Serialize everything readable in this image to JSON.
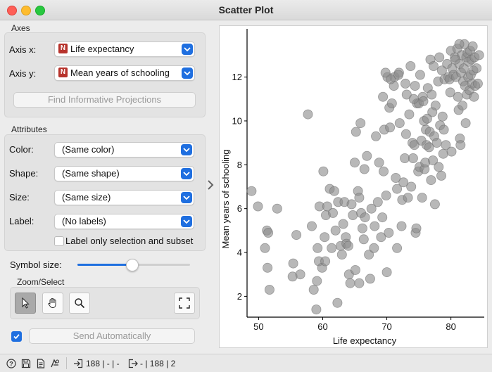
{
  "window": {
    "title": "Scatter Plot"
  },
  "axes": {
    "section": "Axes",
    "x_label": "Axis x:",
    "x_value": "Life expectancy",
    "y_label": "Axis y:",
    "y_value": "Mean years of schooling",
    "var_badge": "N",
    "find_button": "Find Informative Projections"
  },
  "attributes": {
    "section": "Attributes",
    "color_label": "Color:",
    "color_value": "(Same color)",
    "shape_label": "Shape:",
    "shape_value": "(Same shape)",
    "size_label": "Size:",
    "size_value": "(Same size)",
    "label_label": "Label:",
    "label_value": "(No labels)",
    "label_only_text": "Label only selection and subset",
    "label_only_checked": false
  },
  "symbol": {
    "label": "Symbol size:",
    "value_fraction": 0.48
  },
  "zoom": {
    "section": "Zoom/Select"
  },
  "send": {
    "checked": true,
    "label": "Send Automatically"
  },
  "status": {
    "in_text": "188 | - | -",
    "out_text": "- | 188 | 2"
  },
  "colors": {
    "accent": "#1f6fe0",
    "point": "#8c8c8c",
    "badge": "#b7332c"
  },
  "chart_data": {
    "type": "scatter",
    "xlabel": "Life expectancy",
    "ylabel": "Mean years of schooling",
    "xlim": [
      48.2,
      85.2
    ],
    "ylim": [
      1.05,
      14.2
    ],
    "xticks": [
      50,
      60,
      70,
      80
    ],
    "yticks": [
      2,
      4,
      6,
      8,
      10,
      12
    ],
    "grid": false,
    "points": [
      [
        48.9,
        6.8
      ],
      [
        49.9,
        6.1
      ],
      [
        51.0,
        4.2
      ],
      [
        51.3,
        5.0
      ],
      [
        51.5,
        4.9
      ],
      [
        51.7,
        2.3
      ],
      [
        51.4,
        3.3
      ],
      [
        52.9,
        6.0
      ],
      [
        55.4,
        3.5
      ],
      [
        55.3,
        2.9
      ],
      [
        55.9,
        4.8
      ],
      [
        56.5,
        3.0
      ],
      [
        57.7,
        10.3
      ],
      [
        58.3,
        5.2
      ],
      [
        58.6,
        2.3
      ],
      [
        59.0,
        1.4
      ],
      [
        59.1,
        2.7
      ],
      [
        59.2,
        4.2
      ],
      [
        59.4,
        3.6
      ],
      [
        59.5,
        6.1
      ],
      [
        59.9,
        3.3
      ],
      [
        60.1,
        7.7
      ],
      [
        60.3,
        4.7
      ],
      [
        60.4,
        3.6
      ],
      [
        60.5,
        5.7
      ],
      [
        60.7,
        6.1
      ],
      [
        61.1,
        6.9
      ],
      [
        61.4,
        4.2
      ],
      [
        61.6,
        5.8
      ],
      [
        61.8,
        6.8
      ],
      [
        62.0,
        5.0
      ],
      [
        62.3,
        1.7
      ],
      [
        62.4,
        6.3
      ],
      [
        62.8,
        4.3
      ],
      [
        63.0,
        3.9
      ],
      [
        63.2,
        5.3
      ],
      [
        63.4,
        6.3
      ],
      [
        63.6,
        4.7
      ],
      [
        63.7,
        4.4
      ],
      [
        64.0,
        4.3
      ],
      [
        64.1,
        3.0
      ],
      [
        64.3,
        2.6
      ],
      [
        64.5,
        6.2
      ],
      [
        64.7,
        5.7
      ],
      [
        65.0,
        8.1
      ],
      [
        65.1,
        3.2
      ],
      [
        65.2,
        9.5
      ],
      [
        65.5,
        6.8
      ],
      [
        65.7,
        2.6
      ],
      [
        65.7,
        6.5
      ],
      [
        65.9,
        9.9
      ],
      [
        66.0,
        5.8
      ],
      [
        66.2,
        5.1
      ],
      [
        66.4,
        4.6
      ],
      [
        66.5,
        7.8
      ],
      [
        66.6,
        5.6
      ],
      [
        66.9,
        8.4
      ],
      [
        67.2,
        3.9
      ],
      [
        67.4,
        2.8
      ],
      [
        67.6,
        6.0
      ],
      [
        68.0,
        4.2
      ],
      [
        68.1,
        5.2
      ],
      [
        68.3,
        9.3
      ],
      [
        68.6,
        6.3
      ],
      [
        68.8,
        8.1
      ],
      [
        69.1,
        4.7
      ],
      [
        69.3,
        5.6
      ],
      [
        69.5,
        7.7
      ],
      [
        69.6,
        9.6
      ],
      [
        69.9,
        6.6
      ],
      [
        70.0,
        3.1
      ],
      [
        70.1,
        12.0
      ],
      [
        70.3,
        4.9
      ],
      [
        70.4,
        10.6
      ],
      [
        70.5,
        9.7
      ],
      [
        70.8,
        10.8
      ],
      [
        71.1,
        11.6
      ],
      [
        71.2,
        12.0
      ],
      [
        71.4,
        7.4
      ],
      [
        71.6,
        4.2
      ],
      [
        71.6,
        6.9
      ],
      [
        71.9,
        12.2
      ],
      [
        72.0,
        9.9
      ],
      [
        72.3,
        5.2
      ],
      [
        72.4,
        6.4
      ],
      [
        72.6,
        7.2
      ],
      [
        72.8,
        8.3
      ],
      [
        73.0,
        9.4
      ],
      [
        73.1,
        11.2
      ],
      [
        73.3,
        6.5
      ],
      [
        73.5,
        10.3
      ],
      [
        73.7,
        12.5
      ],
      [
        73.8,
        7.0
      ],
      [
        74.0,
        9.0
      ],
      [
        74.1,
        8.3
      ],
      [
        74.3,
        8.9
      ],
      [
        74.4,
        11.6
      ],
      [
        74.5,
        4.9
      ],
      [
        74.6,
        5.1
      ],
      [
        74.7,
        10.8
      ],
      [
        74.9,
        7.7
      ],
      [
        75.0,
        10.8
      ],
      [
        75.1,
        7.9
      ],
      [
        75.2,
        12.1
      ],
      [
        75.4,
        9.1
      ],
      [
        75.5,
        6.5
      ],
      [
        75.6,
        11.1
      ],
      [
        75.8,
        10.0
      ],
      [
        75.9,
        7.8
      ],
      [
        76.0,
        8.1
      ],
      [
        76.1,
        9.6
      ],
      [
        76.2,
        8.9
      ],
      [
        76.4,
        11.5
      ],
      [
        76.6,
        8.8
      ],
      [
        76.7,
        9.5
      ],
      [
        76.8,
        12.8
      ],
      [
        76.9,
        7.3
      ],
      [
        77.0,
        11.2
      ],
      [
        77.2,
        8.2
      ],
      [
        77.3,
        12.5
      ],
      [
        77.4,
        9.3
      ],
      [
        77.5,
        6.2
      ],
      [
        77.6,
        10.7
      ],
      [
        77.8,
        9.0
      ],
      [
        78.0,
        11.8
      ],
      [
        78.1,
        7.9
      ],
      [
        78.2,
        12.9
      ],
      [
        78.3,
        9.8
      ],
      [
        78.5,
        7.5
      ],
      [
        78.6,
        12.3
      ],
      [
        78.8,
        8.5
      ],
      [
        78.9,
        9.6
      ],
      [
        79.0,
        11.9
      ],
      [
        79.2,
        8.9
      ],
      [
        79.4,
        12.6
      ],
      [
        79.6,
        12.0
      ],
      [
        79.8,
        11.9
      ],
      [
        80.0,
        13.2
      ],
      [
        80.1,
        8.6
      ],
      [
        80.2,
        12.4
      ],
      [
        80.4,
        12.1
      ],
      [
        80.6,
        12.9
      ],
      [
        80.8,
        12.0
      ],
      [
        81.0,
        13.3
      ],
      [
        81.1,
        11.1
      ],
      [
        81.2,
        10.5
      ],
      [
        81.3,
        12.6
      ],
      [
        81.4,
        9.2
      ],
      [
        81.5,
        8.9
      ],
      [
        81.6,
        12.2
      ],
      [
        81.7,
        13.0
      ],
      [
        81.8,
        10.7
      ],
      [
        81.9,
        11.8
      ],
      [
        82.0,
        12.4
      ],
      [
        82.1,
        13.5
      ],
      [
        82.2,
        11.6
      ],
      [
        82.3,
        9.9
      ],
      [
        82.4,
        12.9
      ],
      [
        82.5,
        11.2
      ],
      [
        82.6,
        13.1
      ],
      [
        82.7,
        12.0
      ],
      [
        82.8,
        12.7
      ],
      [
        82.9,
        11.4
      ],
      [
        83.0,
        13.2
      ],
      [
        83.1,
        12.1
      ],
      [
        83.2,
        12.8
      ],
      [
        83.3,
        11.7
      ],
      [
        83.4,
        13.4
      ],
      [
        83.5,
        12.3
      ],
      [
        83.6,
        11.1
      ],
      [
        83.7,
        12.9
      ],
      [
        83.8,
        11.6
      ],
      [
        84.0,
        12.4
      ],
      [
        84.2,
        11.7
      ],
      [
        84.4,
        13.0
      ],
      [
        81.3,
        13.5
      ],
      [
        80.7,
        12.8
      ],
      [
        79.9,
        11.3
      ],
      [
        78.7,
        10.2
      ],
      [
        77.1,
        10.4
      ],
      [
        76.3,
        10.1
      ],
      [
        75.7,
        10.9
      ],
      [
        74.2,
        11.0
      ],
      [
        72.9,
        11.7
      ],
      [
        71.8,
        12.1
      ],
      [
        70.6,
        11.9
      ],
      [
        69.8,
        12.2
      ],
      [
        69.4,
        11.1
      ]
    ]
  }
}
